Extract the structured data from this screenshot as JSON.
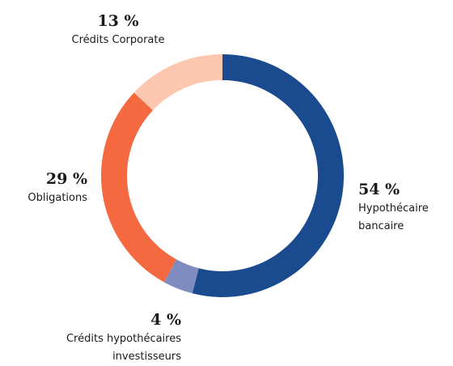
{
  "chart_data": {
    "type": "donut",
    "categories": [
      "Hypothécaire bancaire",
      "Crédits hypothécaires investisseurs",
      "Obligations",
      "Crédits Corporate"
    ],
    "values": [
      54,
      4,
      29,
      13
    ],
    "value_labels": [
      "54 %",
      "4 %",
      "29 %",
      "13 %"
    ],
    "colors": [
      "#1a4b8f",
      "#7f8cc0",
      "#f4693f",
      "#fcc7ae"
    ]
  }
}
